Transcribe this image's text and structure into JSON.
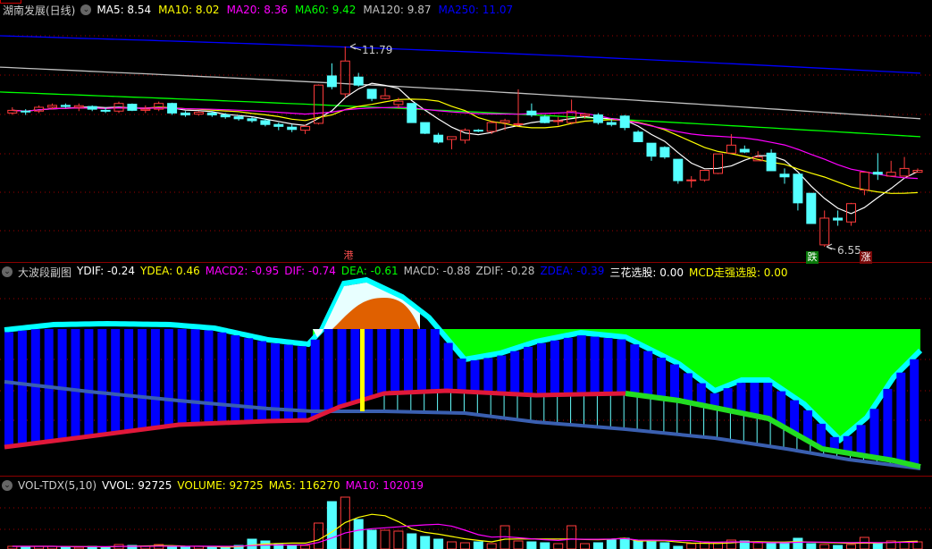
{
  "main": {
    "title": "湖南发展(日线)",
    "ma": [
      {
        "label": "MA5: 8.54",
        "color": "#ffffff"
      },
      {
        "label": "MA10: 8.02",
        "color": "#ffff00"
      },
      {
        "label": "MA20: 8.36",
        "color": "#ff00ff"
      },
      {
        "label": "MA60: 9.42",
        "color": "#00ff00"
      },
      {
        "label": "MA120: 9.87",
        "color": "#c0c0c0"
      },
      {
        "label": "MA250: 11.07",
        "color": "#0000ff"
      }
    ],
    "high_label": "11.79",
    "low_label": "6.55",
    "signals": {
      "gang": "港",
      "die": "跌",
      "zhang": "涨"
    },
    "colors": {
      "up": "#ff3b3b",
      "down": "#54ffff",
      "ma5": "#ffffff",
      "ma10": "#ffff00",
      "ma20": "#ff00ff",
      "ma60": "#00ff00",
      "ma120": "#c0c0c0",
      "ma250": "#0000ff"
    },
    "long_ma_endpoints": {
      "ma60": [
        10.6,
        9.43
      ],
      "ma120": [
        11.25,
        9.9
      ],
      "ma250": [
        12.07,
        11.09
      ]
    },
    "candles": [
      [
        10.05,
        10.12,
        10.2,
        10.0
      ],
      [
        10.1,
        10.08,
        10.15,
        10.0
      ],
      [
        10.1,
        10.2,
        10.25,
        10.05
      ],
      [
        10.2,
        10.25,
        10.3,
        10.15
      ],
      [
        10.25,
        10.22,
        10.3,
        10.18
      ],
      [
        10.2,
        10.24,
        10.3,
        10.1
      ],
      [
        10.22,
        10.15,
        10.25,
        10.1
      ],
      [
        10.12,
        10.1,
        10.2,
        10.05
      ],
      [
        10.1,
        10.3,
        10.35,
        10.05
      ],
      [
        10.28,
        10.12,
        10.3,
        10.1
      ],
      [
        10.12,
        10.15,
        10.25,
        10.05
      ],
      [
        10.15,
        10.3,
        10.35,
        10.1
      ],
      [
        10.3,
        10.05,
        10.32,
        10.0
      ],
      [
        10.05,
        10.0,
        10.1,
        9.95
      ],
      [
        10.02,
        10.07,
        10.1,
        9.98
      ],
      [
        10.05,
        10.0,
        10.1,
        9.95
      ],
      [
        10.0,
        9.95,
        10.05,
        9.9
      ],
      [
        9.95,
        9.9,
        10.0,
        9.85
      ],
      [
        9.9,
        9.85,
        9.95,
        9.8
      ],
      [
        9.85,
        9.75,
        9.9,
        9.7
      ],
      [
        9.75,
        9.7,
        9.8,
        9.6
      ],
      [
        9.68,
        9.62,
        9.75,
        9.55
      ],
      [
        9.6,
        9.7,
        9.75,
        9.5
      ],
      [
        9.78,
        10.78,
        10.8,
        9.75
      ],
      [
        11.02,
        10.74,
        11.35,
        10.67
      ],
      [
        10.55,
        11.41,
        11.79,
        10.45
      ],
      [
        10.99,
        10.78,
        11.1,
        10.74
      ],
      [
        10.67,
        10.43,
        10.67,
        10.36
      ],
      [
        10.43,
        10.5,
        10.7,
        10.4
      ],
      [
        10.27,
        10.36,
        10.45,
        10.17
      ],
      [
        10.3,
        9.8,
        10.3,
        9.8
      ],
      [
        9.8,
        9.52,
        9.8,
        9.5
      ],
      [
        9.47,
        9.29,
        9.53,
        9.25
      ],
      [
        9.36,
        9.43,
        9.43,
        9.1
      ],
      [
        9.34,
        9.6,
        9.65,
        9.25
      ],
      [
        9.6,
        9.58,
        9.63,
        9.55
      ],
      [
        9.57,
        9.8,
        9.85,
        9.5
      ],
      [
        9.8,
        9.85,
        9.9,
        9.6
      ],
      [
        9.75,
        9.77,
        10.67,
        9.7
      ],
      [
        10.1,
        10.0,
        10.3,
        9.95
      ],
      [
        9.95,
        9.8,
        10.0,
        9.78
      ],
      [
        9.85,
        9.85,
        9.95,
        9.72
      ],
      [
        9.8,
        10.1,
        10.4,
        9.75
      ],
      [
        9.98,
        10.02,
        10.05,
        9.9
      ],
      [
        10.0,
        9.8,
        10.05,
        9.75
      ],
      [
        9.8,
        9.75,
        9.9,
        9.7
      ],
      [
        9.97,
        9.67,
        10.0,
        9.6
      ],
      [
        9.55,
        9.3,
        9.6,
        9.3
      ],
      [
        9.26,
        8.92,
        9.26,
        8.8
      ],
      [
        9.15,
        8.9,
        9.18,
        8.85
      ],
      [
        8.84,
        8.28,
        8.84,
        8.2
      ],
      [
        8.3,
        8.3,
        8.4,
        8.1
      ],
      [
        8.3,
        8.55,
        8.55,
        8.25
      ],
      [
        8.47,
        8.98,
        8.98,
        8.45
      ],
      [
        9.0,
        9.21,
        9.5,
        9.0
      ],
      [
        9.1,
        9.03,
        9.2,
        9.0
      ],
      [
        8.8,
        8.9,
        9.05,
        8.8
      ],
      [
        9.0,
        8.54,
        9.1,
        8.54
      ],
      [
        8.45,
        8.38,
        8.6,
        8.2
      ],
      [
        8.45,
        7.7,
        8.45,
        7.5
      ],
      [
        7.95,
        7.16,
        7.95,
        7.16
      ],
      [
        6.6,
        7.3,
        7.5,
        6.55
      ],
      [
        7.3,
        7.25,
        7.5,
        7.1
      ],
      [
        7.2,
        7.68,
        7.7,
        7.1
      ],
      [
        8.04,
        8.5,
        8.5,
        7.9
      ],
      [
        8.5,
        8.45,
        9.0,
        8.3
      ],
      [
        8.4,
        8.5,
        8.8,
        8.4
      ],
      [
        8.4,
        8.6,
        8.9,
        8.4
      ],
      [
        8.5,
        8.55,
        8.6,
        8.5
      ]
    ]
  },
  "sub": {
    "title": "大波段副图",
    "items": [
      {
        "label": "YDIF: -0.24",
        "color": "#ffffff"
      },
      {
        "label": "YDEA: 0.46",
        "color": "#ffff00"
      },
      {
        "label": "MACD2: -0.95",
        "color": "#ff00ff"
      },
      {
        "label": "DIF: -0.74",
        "color": "#ff00ff"
      },
      {
        "label": "DEA: -0.61",
        "color": "#00ff00"
      },
      {
        "label": "MACD: -0.88",
        "color": "#c0c0c0"
      },
      {
        "label": "ZDIF: -0.28",
        "color": "#c0c0c0"
      },
      {
        "label": "ZDEA: -0.39",
        "color": "#0000ff"
      },
      {
        "label": "三花选股: 0.00",
        "color": "#ffffff"
      },
      {
        "label": "MCD走强选股: 0.00",
        "color": "#ffff00"
      }
    ]
  },
  "vol": {
    "title": "VOL-TDX(5,10)",
    "items": [
      {
        "label": "VVOL: 92725",
        "color": "#ffffff"
      },
      {
        "label": "VOLUME: 92725",
        "color": "#ffff00"
      },
      {
        "label": "MA5: 116270",
        "color": "#ffff00"
      },
      {
        "label": "MA10: 102019",
        "color": "#ff00ff"
      }
    ]
  }
}
